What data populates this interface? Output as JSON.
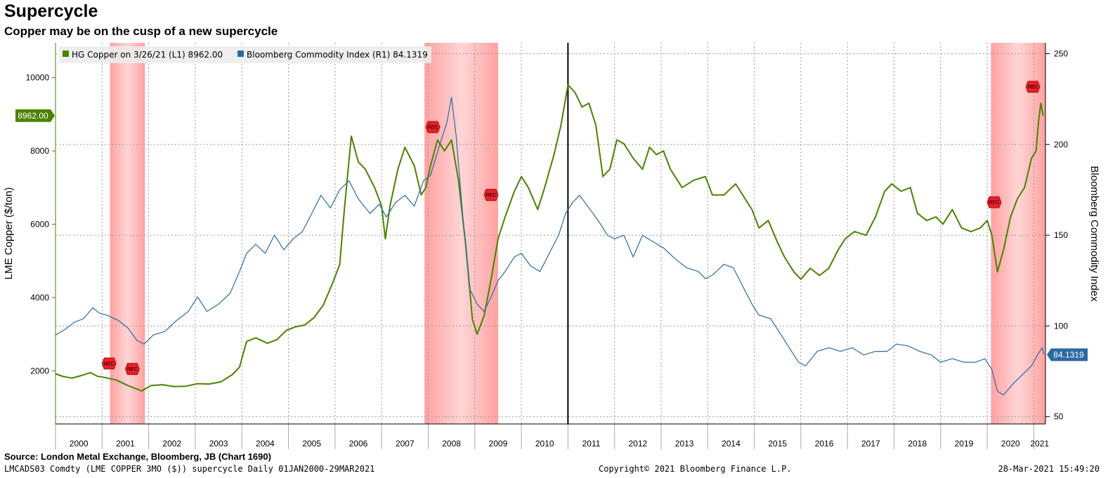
{
  "header": {
    "title": "Supercycle",
    "subtitle": "Copper may be on the cusp of a new supercycle"
  },
  "footer": {
    "source": "Source: London Metal Exchange, Bloomberg, JB (Chart 1690)",
    "left": "LMCADS03 Comdty (LME COPPER   3MO ($)) supercycle  Daily 01JAN2000-29MAR2021",
    "center": "Copyright© 2021 Bloomberg Finance L.P.",
    "right": "28-Mar-2021 15:49:20"
  },
  "colors": {
    "copper": "#4b8200",
    "index": "#2c6aa1",
    "recession": "#ff9c9c",
    "rec_marker": "#e8202a",
    "marker_line": "#000000"
  },
  "chart_data": {
    "type": "line",
    "x_range": [
      2000.0,
      2021.25
    ],
    "y_left": {
      "label": "LME Copper ($/ton)",
      "range": [
        550,
        10950
      ],
      "ticks": [
        2000,
        4000,
        6000,
        8000,
        10000
      ]
    },
    "y_right": {
      "label": "Bloomberg Commodity Index",
      "range": [
        46,
        256
      ],
      "ticks": [
        50,
        100,
        150,
        200,
        250
      ]
    },
    "x_ticks": [
      "2000",
      "2001",
      "2002",
      "2003",
      "2004",
      "2005",
      "2006",
      "2007",
      "2008",
      "2009",
      "2010",
      "2011",
      "2012",
      "2013",
      "2014",
      "2015",
      "2016",
      "2017",
      "2018",
      "2019",
      "2020",
      "2021"
    ],
    "legend": [
      {
        "name": "HG Copper on 3/26/21 (L1)",
        "value": "8962.00"
      },
      {
        "name": "Bloomberg Commodity Index (R1)",
        "value": "84.1319"
      }
    ],
    "last_value_labels": {
      "left": "8962.00",
      "right": "84.1319"
    },
    "recessions": [
      [
        2001.17,
        2001.92
      ],
      [
        2007.92,
        2009.5
      ],
      [
        2020.08,
        2021.25
      ]
    ],
    "rec_markers": [
      {
        "x": 2001.15,
        "y_left": 2200,
        "label": "REC"
      },
      {
        "x": 2001.65,
        "y_left": 2050,
        "label": "REC"
      },
      {
        "x": 2008.1,
        "y_left": 8650,
        "label": "REC"
      },
      {
        "x": 2009.35,
        "y_left": 6800,
        "label": "REC"
      },
      {
        "x": 2020.15,
        "y_left": 6600,
        "label": "REC"
      },
      {
        "x": 2020.98,
        "y_left": 9750,
        "label": "REC"
      }
    ],
    "vertical_marker_x": 2011.0,
    "series": [
      {
        "name": "HG Copper on 3/26/21 (L1)",
        "axis": "left",
        "points": [
          [
            2000.0,
            1920
          ],
          [
            2000.15,
            1850
          ],
          [
            2000.35,
            1800
          ],
          [
            2000.55,
            1870
          ],
          [
            2000.75,
            1950
          ],
          [
            2000.9,
            1850
          ],
          [
            2001.05,
            1820
          ],
          [
            2001.3,
            1750
          ],
          [
            2001.55,
            1600
          ],
          [
            2001.85,
            1450
          ],
          [
            2002.05,
            1600
          ],
          [
            2002.3,
            1620
          ],
          [
            2002.55,
            1570
          ],
          [
            2002.8,
            1580
          ],
          [
            2003.05,
            1650
          ],
          [
            2003.3,
            1640
          ],
          [
            2003.55,
            1700
          ],
          [
            2003.8,
            1900
          ],
          [
            2003.95,
            2100
          ],
          [
            2004.1,
            2800
          ],
          [
            2004.3,
            2900
          ],
          [
            2004.55,
            2750
          ],
          [
            2004.75,
            2850
          ],
          [
            2004.95,
            3100
          ],
          [
            2005.15,
            3200
          ],
          [
            2005.35,
            3250
          ],
          [
            2005.55,
            3450
          ],
          [
            2005.75,
            3800
          ],
          [
            2005.95,
            4400
          ],
          [
            2006.1,
            4900
          ],
          [
            2006.2,
            6400
          ],
          [
            2006.35,
            8400
          ],
          [
            2006.5,
            7700
          ],
          [
            2006.65,
            7500
          ],
          [
            2006.85,
            7000
          ],
          [
            2007.0,
            6500
          ],
          [
            2007.08,
            5600
          ],
          [
            2007.18,
            6500
          ],
          [
            2007.35,
            7500
          ],
          [
            2007.5,
            8100
          ],
          [
            2007.7,
            7600
          ],
          [
            2007.85,
            6800
          ],
          [
            2007.95,
            7000
          ],
          [
            2008.05,
            7600
          ],
          [
            2008.2,
            8300
          ],
          [
            2008.35,
            8000
          ],
          [
            2008.5,
            8300
          ],
          [
            2008.65,
            7200
          ],
          [
            2008.8,
            5500
          ],
          [
            2008.95,
            3400
          ],
          [
            2009.05,
            3000
          ],
          [
            2009.2,
            3500
          ],
          [
            2009.35,
            4500
          ],
          [
            2009.5,
            5600
          ],
          [
            2009.65,
            6200
          ],
          [
            2009.85,
            6900
          ],
          [
            2010.0,
            7300
          ],
          [
            2010.15,
            7000
          ],
          [
            2010.35,
            6400
          ],
          [
            2010.5,
            7000
          ],
          [
            2010.7,
            7900
          ],
          [
            2010.85,
            8700
          ],
          [
            2011.0,
            9800
          ],
          [
            2011.15,
            9600
          ],
          [
            2011.3,
            9200
          ],
          [
            2011.45,
            9300
          ],
          [
            2011.6,
            8700
          ],
          [
            2011.75,
            7300
          ],
          [
            2011.9,
            7500
          ],
          [
            2012.05,
            8300
          ],
          [
            2012.2,
            8200
          ],
          [
            2012.4,
            7800
          ],
          [
            2012.6,
            7500
          ],
          [
            2012.75,
            8100
          ],
          [
            2012.9,
            7900
          ],
          [
            2013.05,
            8000
          ],
          [
            2013.2,
            7500
          ],
          [
            2013.45,
            7000
          ],
          [
            2013.7,
            7200
          ],
          [
            2013.95,
            7300
          ],
          [
            2014.1,
            6800
          ],
          [
            2014.35,
            6800
          ],
          [
            2014.6,
            7100
          ],
          [
            2014.8,
            6700
          ],
          [
            2014.95,
            6400
          ],
          [
            2015.1,
            5900
          ],
          [
            2015.3,
            6100
          ],
          [
            2015.5,
            5500
          ],
          [
            2015.65,
            5100
          ],
          [
            2015.85,
            4700
          ],
          [
            2016.0,
            4500
          ],
          [
            2016.2,
            4800
          ],
          [
            2016.4,
            4600
          ],
          [
            2016.6,
            4800
          ],
          [
            2016.8,
            5300
          ],
          [
            2016.95,
            5600
          ],
          [
            2017.15,
            5800
          ],
          [
            2017.4,
            5700
          ],
          [
            2017.6,
            6200
          ],
          [
            2017.8,
            6900
          ],
          [
            2017.95,
            7100
          ],
          [
            2018.15,
            6900
          ],
          [
            2018.35,
            7000
          ],
          [
            2018.5,
            6300
          ],
          [
            2018.7,
            6100
          ],
          [
            2018.9,
            6200
          ],
          [
            2019.05,
            6000
          ],
          [
            2019.25,
            6400
          ],
          [
            2019.45,
            5900
          ],
          [
            2019.65,
            5800
          ],
          [
            2019.85,
            5900
          ],
          [
            2020.0,
            6100
          ],
          [
            2020.1,
            5700
          ],
          [
            2020.22,
            4700
          ],
          [
            2020.35,
            5300
          ],
          [
            2020.5,
            6200
          ],
          [
            2020.65,
            6700
          ],
          [
            2020.8,
            7000
          ],
          [
            2020.95,
            7800
          ],
          [
            2021.05,
            8000
          ],
          [
            2021.1,
            8800
          ],
          [
            2021.15,
            9300
          ],
          [
            2021.2,
            8962
          ]
        ]
      },
      {
        "name": "Bloomberg Commodity Index (R1)",
        "axis": "right",
        "points": [
          [
            2000.0,
            95
          ],
          [
            2000.2,
            98
          ],
          [
            2000.4,
            102
          ],
          [
            2000.6,
            104
          ],
          [
            2000.8,
            110
          ],
          [
            2000.95,
            107
          ],
          [
            2001.1,
            106
          ],
          [
            2001.35,
            103
          ],
          [
            2001.55,
            99
          ],
          [
            2001.75,
            92
          ],
          [
            2001.9,
            90
          ],
          [
            2002.1,
            95
          ],
          [
            2002.35,
            97
          ],
          [
            2002.6,
            103
          ],
          [
            2002.85,
            108
          ],
          [
            2003.05,
            116
          ],
          [
            2003.25,
            108
          ],
          [
            2003.5,
            112
          ],
          [
            2003.75,
            118
          ],
          [
            2003.95,
            130
          ],
          [
            2004.1,
            140
          ],
          [
            2004.3,
            145
          ],
          [
            2004.5,
            140
          ],
          [
            2004.7,
            150
          ],
          [
            2004.9,
            142
          ],
          [
            2005.1,
            148
          ],
          [
            2005.3,
            152
          ],
          [
            2005.5,
            162
          ],
          [
            2005.7,
            172
          ],
          [
            2005.9,
            165
          ],
          [
            2006.1,
            175
          ],
          [
            2006.3,
            180
          ],
          [
            2006.5,
            170
          ],
          [
            2006.75,
            162
          ],
          [
            2006.95,
            167
          ],
          [
            2007.1,
            160
          ],
          [
            2007.3,
            168
          ],
          [
            2007.5,
            172
          ],
          [
            2007.7,
            166
          ],
          [
            2007.9,
            180
          ],
          [
            2008.05,
            183
          ],
          [
            2008.25,
            200
          ],
          [
            2008.4,
            212
          ],
          [
            2008.5,
            226
          ],
          [
            2008.6,
            205
          ],
          [
            2008.75,
            158
          ],
          [
            2008.9,
            120
          ],
          [
            2009.05,
            112
          ],
          [
            2009.2,
            108
          ],
          [
            2009.35,
            116
          ],
          [
            2009.5,
            125
          ],
          [
            2009.65,
            130
          ],
          [
            2009.85,
            138
          ],
          [
            2010.0,
            140
          ],
          [
            2010.2,
            133
          ],
          [
            2010.4,
            130
          ],
          [
            2010.6,
            140
          ],
          [
            2010.8,
            150
          ],
          [
            2010.95,
            162
          ],
          [
            2011.1,
            168
          ],
          [
            2011.25,
            172
          ],
          [
            2011.45,
            165
          ],
          [
            2011.65,
            158
          ],
          [
            2011.85,
            150
          ],
          [
            2012.0,
            148
          ],
          [
            2012.2,
            150
          ],
          [
            2012.4,
            138
          ],
          [
            2012.6,
            150
          ],
          [
            2012.85,
            146
          ],
          [
            2013.05,
            143
          ],
          [
            2013.3,
            137
          ],
          [
            2013.55,
            132
          ],
          [
            2013.8,
            130
          ],
          [
            2013.95,
            126
          ],
          [
            2014.1,
            128
          ],
          [
            2014.35,
            134
          ],
          [
            2014.55,
            132
          ],
          [
            2014.75,
            122
          ],
          [
            2014.95,
            112
          ],
          [
            2015.1,
            106
          ],
          [
            2015.35,
            104
          ],
          [
            2015.55,
            96
          ],
          [
            2015.75,
            88
          ],
          [
            2015.95,
            80
          ],
          [
            2016.1,
            78
          ],
          [
            2016.35,
            86
          ],
          [
            2016.6,
            88
          ],
          [
            2016.85,
            86
          ],
          [
            2017.1,
            88
          ],
          [
            2017.35,
            84
          ],
          [
            2017.6,
            86
          ],
          [
            2017.85,
            86
          ],
          [
            2018.05,
            90
          ],
          [
            2018.3,
            89
          ],
          [
            2018.55,
            86
          ],
          [
            2018.8,
            84
          ],
          [
            2019.0,
            80
          ],
          [
            2019.25,
            82
          ],
          [
            2019.5,
            80
          ],
          [
            2019.75,
            80
          ],
          [
            2019.95,
            82
          ],
          [
            2020.1,
            76
          ],
          [
            2020.22,
            64
          ],
          [
            2020.35,
            62
          ],
          [
            2020.55,
            68
          ],
          [
            2020.75,
            73
          ],
          [
            2020.95,
            78
          ],
          [
            2021.1,
            85
          ],
          [
            2021.18,
            88
          ],
          [
            2021.22,
            84.1319
          ]
        ]
      }
    ]
  }
}
